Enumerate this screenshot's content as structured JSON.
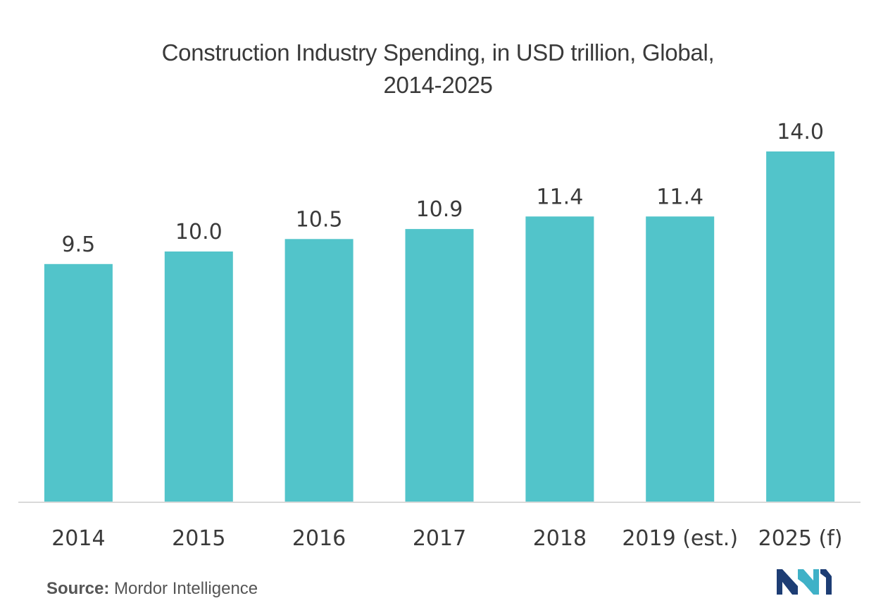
{
  "chart_data": {
    "type": "bar",
    "title_lines": [
      "Construction Industry Spending, in USD trillion, Global,",
      "2014-2025"
    ],
    "categories": [
      "2014",
      "2015",
      "2016",
      "2017",
      "2018",
      "2019 (est.)",
      "2025 (f)"
    ],
    "values": [
      9.5,
      10.0,
      10.5,
      10.9,
      11.4,
      11.4,
      14.0
    ],
    "value_labels": [
      "9.5",
      "10.0",
      "10.5",
      "10.9",
      "11.4",
      "11.4",
      "14.0"
    ],
    "xlabel": "",
    "ylabel": "",
    "ylim": [
      0,
      14.0
    ],
    "grid": false,
    "bar_color": "#52c4ca"
  },
  "source": {
    "label": "Source:",
    "text": "Mordor Intelligence"
  },
  "logo": {
    "icon": "mordor-intelligence-logo-icon",
    "colors": [
      "#1d3d74",
      "#3fb1c7"
    ]
  }
}
